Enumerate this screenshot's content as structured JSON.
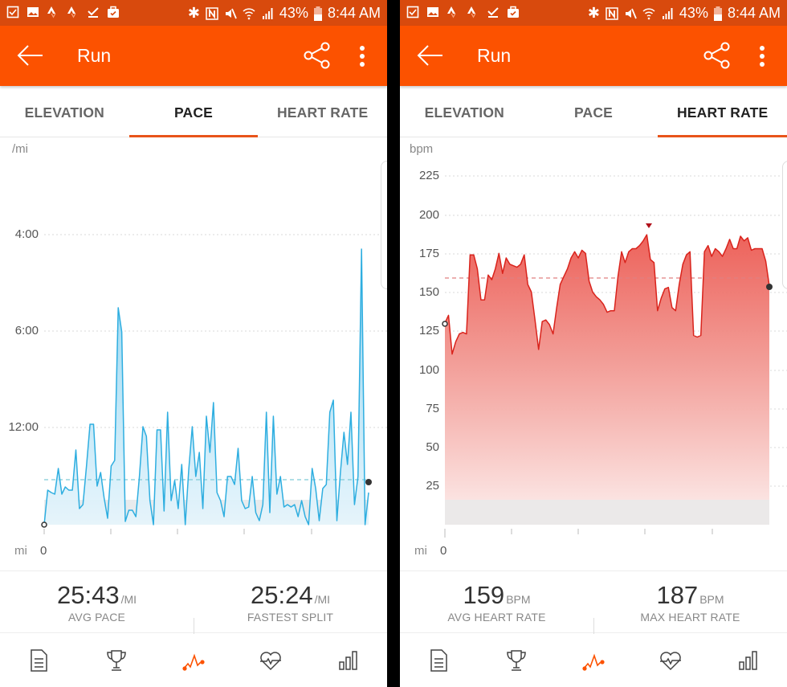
{
  "status_bar": {
    "left_icons": [
      "checkbox-note-icon",
      "image-icon",
      "strava-icon",
      "strava-icon",
      "download-done-icon",
      "briefcase-check-icon"
    ],
    "right_icons": [
      "bluetooth-icon",
      "nfc-icon",
      "mute-icon",
      "wifi-icon",
      "signal-icon"
    ],
    "battery": "43%",
    "time": "8:44 AM"
  },
  "screens": [
    {
      "app_bar": {
        "title": "Run",
        "back_icon": "arrow-left-icon",
        "share_icon": "share-icon",
        "more_icon": "more-vertical-icon"
      },
      "tabs": [
        {
          "label": "ELEVATION",
          "active": false
        },
        {
          "label": "PACE",
          "active": true
        },
        {
          "label": "HEART RATE",
          "active": false
        }
      ],
      "chart": {
        "unit": "/mi",
        "y_labels": [
          "4:00",
          "6:00",
          "12:00"
        ],
        "x_unit": "mi",
        "x_start": "0"
      },
      "stats": [
        {
          "value": "25:43",
          "unit": "/MI",
          "label": "AVG PACE"
        },
        {
          "value": "25:24",
          "unit": "/MI",
          "label": "FASTEST SPLIT"
        }
      ]
    },
    {
      "app_bar": {
        "title": "Run",
        "back_icon": "arrow-left-icon",
        "share_icon": "share-icon",
        "more_icon": "more-vertical-icon"
      },
      "tabs": [
        {
          "label": "ELEVATION",
          "active": false
        },
        {
          "label": "PACE",
          "active": false
        },
        {
          "label": "HEART RATE",
          "active": true
        }
      ],
      "chart": {
        "unit": "bpm",
        "y_labels": [
          "225",
          "200",
          "175",
          "150",
          "125",
          "100",
          "75",
          "50",
          "25"
        ],
        "x_unit": "mi",
        "x_start": "0"
      },
      "stats": [
        {
          "value": "159",
          "unit": "BPM",
          "label": "AVG HEART RATE"
        },
        {
          "value": "187",
          "unit": "BPM",
          "label": "MAX HEART RATE"
        }
      ]
    }
  ],
  "bottom_nav": [
    {
      "name": "overview",
      "icon": "document-icon",
      "active": false
    },
    {
      "name": "achievements",
      "icon": "trophy-icon",
      "active": false
    },
    {
      "name": "analysis",
      "icon": "activity-graph-icon",
      "active": true
    },
    {
      "name": "heart",
      "icon": "heart-rate-icon",
      "active": false
    },
    {
      "name": "splits",
      "icon": "bar-chart-icon",
      "active": false
    }
  ],
  "colors": {
    "status_bar": "#d84a0d",
    "app_bar": "#fc5200",
    "tab_indicator": "#e8541a",
    "pace_line": "#2eaee0",
    "hr_line": "#d9231c",
    "hr_fill": "#ef5b54",
    "nav_active": "#fc5200"
  },
  "chart_data": [
    {
      "type": "area",
      "title": "PACE",
      "ylabel": "/mi",
      "xlabel": "mi",
      "y_tick_labels": [
        "4:00",
        "6:00",
        "12:00"
      ],
      "y_inverted": true,
      "x_tick_labels": [
        "0"
      ],
      "avg_line": "25:43 /mi",
      "fastest_split": "25:24 /mi",
      "series": [
        {
          "name": "pace_plot_height_px",
          "note": "relative height above baseline (0 = slowest), read from pixels",
          "values": [
            0,
            43,
            40,
            38,
            70,
            38,
            47,
            43,
            43,
            93,
            20,
            25,
            73,
            125,
            125,
            48,
            65,
            33,
            8,
            73,
            80,
            270,
            240,
            4,
            18,
            18,
            10,
            60,
            122,
            110,
            30,
            0,
            118,
            118,
            17,
            140,
            30,
            55,
            20,
            75,
            0,
            68,
            122,
            60,
            90,
            20,
            135,
            90,
            152,
            40,
            30,
            10,
            60,
            60,
            50,
            95,
            30,
            20,
            22,
            60,
            15,
            5,
            25,
            140,
            15,
            135,
            38,
            60,
            22,
            25,
            22,
            25,
            10,
            30,
            10,
            0,
            70,
            45,
            5,
            45,
            50,
            140,
            155,
            5,
            65,
            115,
            75,
            140,
            25,
            60,
            343,
            0,
            40
          ]
        }
      ]
    },
    {
      "type": "area",
      "title": "HEART RATE",
      "ylabel": "bpm",
      "xlabel": "mi",
      "y_tick_labels": [
        "225",
        "200",
        "175",
        "150",
        "125",
        "100",
        "75",
        "50",
        "25"
      ],
      "ylim": [
        0,
        225
      ],
      "x_tick_labels": [
        "0"
      ],
      "avg": 159,
      "max": 187,
      "series": [
        {
          "name": "heart_rate_bpm",
          "values": [
            130,
            135,
            110,
            118,
            123,
            124,
            123,
            174,
            174,
            165,
            145,
            145,
            161,
            158,
            165,
            175,
            162,
            172,
            168,
            167,
            166,
            168,
            174,
            155,
            150,
            132,
            113,
            131,
            132,
            129,
            123,
            140,
            155,
            160,
            165,
            172,
            176,
            172,
            177,
            175,
            157,
            150,
            147,
            145,
            142,
            137,
            138,
            138,
            160,
            176,
            169,
            176,
            178,
            178,
            180,
            183,
            187,
            171,
            169,
            138,
            146,
            152,
            153,
            140,
            138,
            155,
            168,
            174,
            176,
            122,
            121,
            122,
            176,
            180,
            173,
            178,
            176,
            173,
            178,
            184,
            178,
            178,
            186,
            183,
            185,
            177,
            178,
            178,
            178,
            170,
            154
          ]
        }
      ]
    }
  ]
}
